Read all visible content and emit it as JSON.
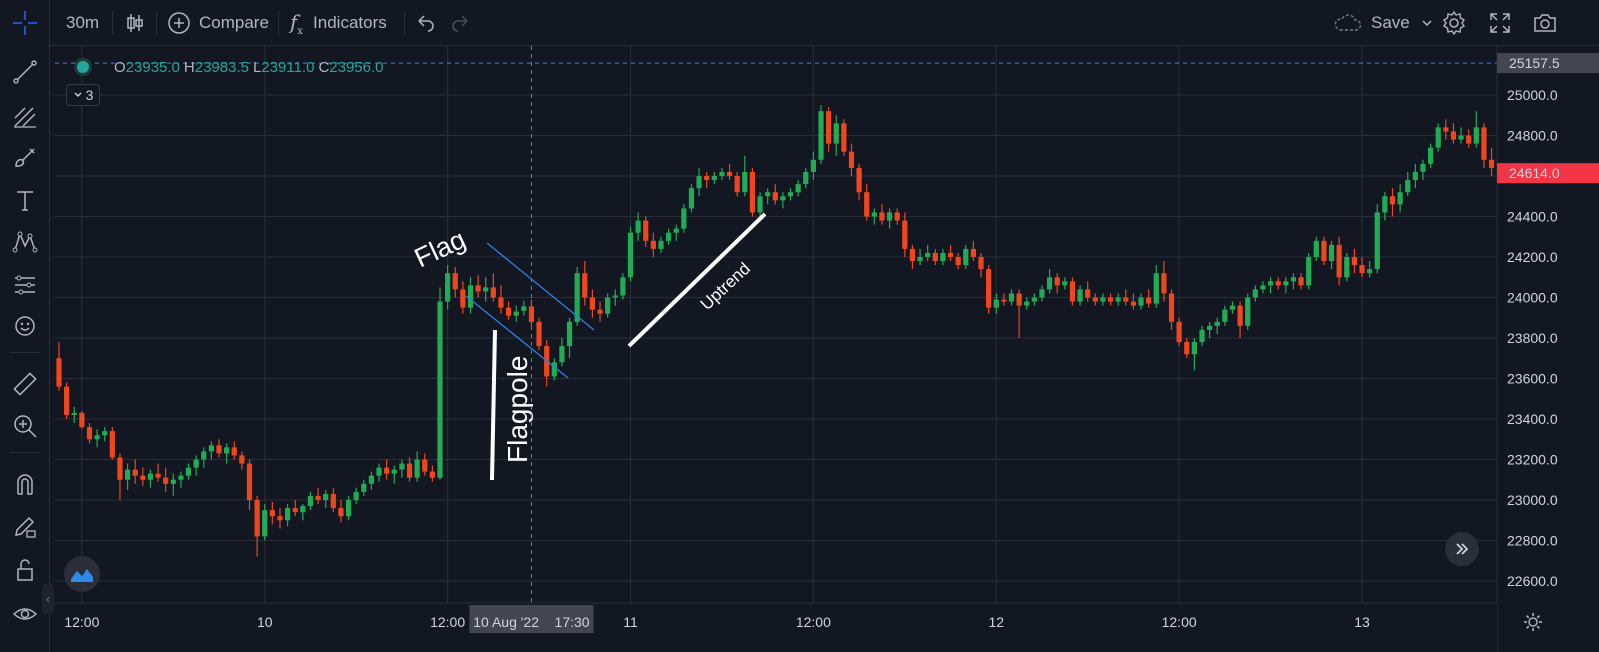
{
  "toolbar": {
    "interval": "30m",
    "compare_label": "Compare",
    "indicators_label": "Indicators",
    "save_label": "Save"
  },
  "legend": {
    "o_label": "O",
    "o_value": "23935.0",
    "h_label": "H",
    "h_value": "23983.5",
    "l_label": "L",
    "l_value": "23911.0",
    "c_label": "C",
    "c_value": "23956.0",
    "study_count": "3"
  },
  "crosshair": {
    "time_label": "10 Aug '22    17:30",
    "price_label": "25157.5",
    "price": 25157.5
  },
  "last_price": {
    "label": "24614.0",
    "value": 24614.0
  },
  "colors": {
    "up": "#26a69a",
    "down": "#ef5350",
    "up_candle": "#22ab55",
    "down_candle": "#f0461d",
    "background": "#131722",
    "grid": "#2a2e39"
  },
  "annotations": {
    "flag": "Flag",
    "flagpole": "Flagpole",
    "uptrend": "Uptrend"
  },
  "chart_data": {
    "type": "candlestick",
    "y_range": [
      22500,
      25350
    ],
    "y_ticks": [
      {
        "value": 25000,
        "label": "25000.0"
      },
      {
        "value": 24800,
        "label": "24800.0"
      },
      {
        "value": 24600,
        "label": "24600.0"
      },
      {
        "value": 24400,
        "label": "24400.0"
      },
      {
        "value": 24200,
        "label": "24200.0"
      },
      {
        "value": 24000,
        "label": "24000.0"
      },
      {
        "value": 23800,
        "label": "23800.0"
      },
      {
        "value": 23600,
        "label": "23600.0"
      },
      {
        "value": 23400,
        "label": "23400.0"
      },
      {
        "value": 23200,
        "label": "23200.0"
      },
      {
        "value": 23000,
        "label": "23000.0"
      },
      {
        "value": 22800,
        "label": "22800.0"
      },
      {
        "value": 22600,
        "label": "22600.0"
      }
    ],
    "x_ticks": [
      {
        "bar": 3,
        "label": "12:00"
      },
      {
        "bar": 27,
        "label": "10"
      },
      {
        "bar": 51,
        "label": "12:00"
      },
      {
        "bar": 75,
        "label": "11"
      },
      {
        "bar": 99,
        "label": "12:00"
      },
      {
        "bar": 123,
        "label": "12"
      },
      {
        "bar": 147,
        "label": "12:00"
      },
      {
        "bar": 171,
        "label": "13"
      }
    ],
    "crosshair_bar": 62,
    "candles": [
      [
        23700,
        23780,
        23540,
        23560
      ],
      [
        23560,
        23580,
        23400,
        23420
      ],
      [
        23420,
        23460,
        23380,
        23430
      ],
      [
        23430,
        23440,
        23350,
        23360
      ],
      [
        23360,
        23380,
        23280,
        23300
      ],
      [
        23300,
        23350,
        23260,
        23320
      ],
      [
        23320,
        23360,
        23290,
        23340
      ],
      [
        23340,
        23360,
        23200,
        23210
      ],
      [
        23210,
        23230,
        23000,
        23100
      ],
      [
        23100,
        23180,
        23050,
        23150
      ],
      [
        23150,
        23200,
        23080,
        23120
      ],
      [
        23120,
        23160,
        23070,
        23100
      ],
      [
        23100,
        23150,
        23060,
        23130
      ],
      [
        23130,
        23180,
        23090,
        23110
      ],
      [
        23110,
        23160,
        23040,
        23080
      ],
      [
        23080,
        23130,
        23020,
        23100
      ],
      [
        23100,
        23140,
        23060,
        23120
      ],
      [
        23120,
        23180,
        23100,
        23160
      ],
      [
        23160,
        23220,
        23120,
        23200
      ],
      [
        23200,
        23260,
        23160,
        23240
      ],
      [
        23240,
        23290,
        23200,
        23270
      ],
      [
        23270,
        23300,
        23210,
        23230
      ],
      [
        23230,
        23280,
        23180,
        23260
      ],
      [
        23260,
        23290,
        23200,
        23220
      ],
      [
        23220,
        23240,
        23150,
        23180
      ],
      [
        23180,
        23200,
        22950,
        23000
      ],
      [
        23000,
        23020,
        22720,
        22820
      ],
      [
        22820,
        22980,
        22800,
        22950
      ],
      [
        22950,
        22990,
        22880,
        22920
      ],
      [
        22920,
        22960,
        22860,
        22900
      ],
      [
        22900,
        22980,
        22870,
        22960
      ],
      [
        22960,
        23000,
        22920,
        22940
      ],
      [
        22940,
        22980,
        22900,
        22970
      ],
      [
        22970,
        23040,
        22950,
        23020
      ],
      [
        23020,
        23060,
        22980,
        23000
      ],
      [
        23000,
        23050,
        22960,
        23030
      ],
      [
        23030,
        23060,
        22940,
        22960
      ],
      [
        22960,
        23000,
        22890,
        22920
      ],
      [
        22920,
        23020,
        22900,
        23000
      ],
      [
        23000,
        23060,
        22980,
        23040
      ],
      [
        23040,
        23100,
        23020,
        23080
      ],
      [
        23080,
        23140,
        23050,
        23120
      ],
      [
        23120,
        23180,
        23090,
        23160
      ],
      [
        23160,
        23200,
        23100,
        23130
      ],
      [
        23130,
        23170,
        23080,
        23150
      ],
      [
        23150,
        23200,
        23110,
        23180
      ],
      [
        23180,
        23210,
        23090,
        23110
      ],
      [
        23110,
        23240,
        23090,
        23200
      ],
      [
        23200,
        23230,
        23120,
        23140
      ],
      [
        23140,
        23170,
        23090,
        23110
      ],
      [
        23110,
        24050,
        23100,
        23980
      ],
      [
        23980,
        24160,
        23940,
        24120
      ],
      [
        24120,
        24150,
        24000,
        24040
      ],
      [
        24040,
        24080,
        23920,
        23950
      ],
      [
        23950,
        24100,
        23920,
        24060
      ],
      [
        24060,
        24110,
        24000,
        24030
      ],
      [
        24030,
        24100,
        23980,
        24050
      ],
      [
        24050,
        24120,
        23980,
        24000
      ],
      [
        24000,
        24060,
        23920,
        23950
      ],
      [
        23950,
        23980,
        23890,
        23910
      ],
      [
        23910,
        23960,
        23880,
        23930
      ],
      [
        23935,
        23983.5,
        23911,
        23956
      ],
      [
        23956,
        23990,
        23860,
        23880
      ],
      [
        23880,
        23900,
        23740,
        23760
      ],
      [
        23760,
        23790,
        23560,
        23610
      ],
      [
        23610,
        23700,
        23590,
        23680
      ],
      [
        23680,
        23800,
        23660,
        23760
      ],
      [
        23760,
        23900,
        23700,
        23880
      ],
      [
        23880,
        24150,
        23860,
        24120
      ],
      [
        24120,
        24180,
        23960,
        24000
      ],
      [
        24000,
        24040,
        23900,
        23940
      ],
      [
        23940,
        23980,
        23880,
        23920
      ],
      [
        23920,
        24020,
        23900,
        24000
      ],
      [
        24000,
        24040,
        23960,
        24010
      ],
      [
        24010,
        24120,
        23990,
        24100
      ],
      [
        24100,
        24350,
        24080,
        24320
      ],
      [
        24320,
        24420,
        24280,
        24380
      ],
      [
        24380,
        24400,
        24250,
        24280
      ],
      [
        24280,
        24320,
        24200,
        24240
      ],
      [
        24240,
        24300,
        24220,
        24280
      ],
      [
        24280,
        24340,
        24260,
        24320
      ],
      [
        24320,
        24360,
        24280,
        24340
      ],
      [
        24340,
        24460,
        24320,
        24440
      ],
      [
        24440,
        24560,
        24420,
        24540
      ],
      [
        24540,
        24640,
        24500,
        24600
      ],
      [
        24600,
        24620,
        24540,
        24580
      ],
      [
        24580,
        24620,
        24560,
        24600
      ],
      [
        24600,
        24640,
        24580,
        24620
      ],
      [
        24620,
        24660,
        24580,
        24600
      ],
      [
        24600,
        24620,
        24500,
        24520
      ],
      [
        24520,
        24700,
        24500,
        24620
      ],
      [
        24620,
        24640,
        24400,
        24420
      ],
      [
        24420,
        24520,
        24400,
        24500
      ],
      [
        24500,
        24540,
        24460,
        24520
      ],
      [
        24520,
        24560,
        24460,
        24480
      ],
      [
        24480,
        24520,
        24440,
        24500
      ],
      [
        24500,
        24540,
        24480,
        24520
      ],
      [
        24520,
        24580,
        24500,
        24560
      ],
      [
        24560,
        24640,
        24540,
        24620
      ],
      [
        24620,
        24720,
        24580,
        24680
      ],
      [
        24680,
        24950,
        24660,
        24920
      ],
      [
        24920,
        24940,
        24720,
        24760
      ],
      [
        24760,
        24900,
        24700,
        24860
      ],
      [
        24860,
        24880,
        24700,
        24720
      ],
      [
        24720,
        24760,
        24600,
        24640
      ],
      [
        24640,
        24660,
        24480,
        24520
      ],
      [
        24520,
        24560,
        24380,
        24400
      ],
      [
        24400,
        24440,
        24360,
        24420
      ],
      [
        24420,
        24460,
        24360,
        24380
      ],
      [
        24380,
        24440,
        24340,
        24420
      ],
      [
        24420,
        24440,
        24360,
        24380
      ],
      [
        24380,
        24420,
        24200,
        24240
      ],
      [
        24240,
        24260,
        24140,
        24180
      ],
      [
        24180,
        24240,
        24160,
        24200
      ],
      [
        24200,
        24260,
        24180,
        24220
      ],
      [
        24220,
        24240,
        24160,
        24180
      ],
      [
        24180,
        24240,
        24160,
        24220
      ],
      [
        24220,
        24260,
        24180,
        24200
      ],
      [
        24200,
        24220,
        24140,
        24160
      ],
      [
        24160,
        24260,
        24140,
        24240
      ],
      [
        24240,
        24280,
        24180,
        24200
      ],
      [
        24200,
        24220,
        24100,
        24140
      ],
      [
        24140,
        24160,
        23920,
        23950
      ],
      [
        23950,
        24020,
        23920,
        23990
      ],
      [
        23990,
        24020,
        23960,
        23980
      ],
      [
        23980,
        24040,
        23960,
        24020
      ],
      [
        24020,
        24040,
        23800,
        23960
      ],
      [
        23960,
        24000,
        23940,
        23980
      ],
      [
        23980,
        24020,
        23960,
        24000
      ],
      [
        24000,
        24060,
        23980,
        24040
      ],
      [
        24040,
        24140,
        24020,
        24100
      ],
      [
        24100,
        24120,
        24020,
        24060
      ],
      [
        24060,
        24100,
        24040,
        24080
      ],
      [
        24080,
        24100,
        23960,
        23980
      ],
      [
        23980,
        24060,
        23960,
        24040
      ],
      [
        24040,
        24080,
        23980,
        24000
      ],
      [
        24000,
        24020,
        23960,
        23980
      ],
      [
        23980,
        24020,
        23960,
        24000
      ],
      [
        24000,
        24020,
        23960,
        23980
      ],
      [
        23980,
        24020,
        23960,
        24000
      ],
      [
        24000,
        24040,
        23960,
        23980
      ],
      [
        23980,
        24020,
        23940,
        23960
      ],
      [
        23960,
        24020,
        23940,
        24000
      ],
      [
        24000,
        24040,
        23950,
        23970
      ],
      [
        23970,
        24160,
        23950,
        24120
      ],
      [
        24120,
        24180,
        23980,
        24020
      ],
      [
        24020,
        24040,
        23840,
        23880
      ],
      [
        23880,
        23900,
        23760,
        23780
      ],
      [
        23780,
        23800,
        23700,
        23720
      ],
      [
        23720,
        23800,
        23640,
        23780
      ],
      [
        23780,
        23860,
        23760,
        23840
      ],
      [
        23840,
        23880,
        23800,
        23860
      ],
      [
        23860,
        23900,
        23820,
        23880
      ],
      [
        23880,
        23960,
        23860,
        23940
      ],
      [
        23940,
        23980,
        23920,
        23960
      ],
      [
        23960,
        23980,
        23800,
        23860
      ],
      [
        23860,
        24020,
        23840,
        24000
      ],
      [
        24000,
        24060,
        23980,
        24040
      ],
      [
        24040,
        24080,
        24020,
        24060
      ],
      [
        24060,
        24100,
        24020,
        24080
      ],
      [
        24080,
        24100,
        24040,
        24060
      ],
      [
        24060,
        24100,
        24020,
        24080
      ],
      [
        24080,
        24120,
        24040,
        24100
      ],
      [
        24100,
        24120,
        24040,
        24060
      ],
      [
        24060,
        24220,
        24040,
        24200
      ],
      [
        24200,
        24300,
        24180,
        24280
      ],
      [
        24280,
        24300,
        24160,
        24180
      ],
      [
        24180,
        24280,
        24140,
        24260
      ],
      [
        24260,
        24300,
        24060,
        24100
      ],
      [
        24100,
        24220,
        24080,
        24200
      ],
      [
        24200,
        24240,
        24120,
        24160
      ],
      [
        24160,
        24200,
        24100,
        24120
      ],
      [
        24120,
        24180,
        24100,
        24140
      ],
      [
        24140,
        24460,
        24120,
        24420
      ],
      [
        24420,
        24520,
        24380,
        24500
      ],
      [
        24500,
        24540,
        24400,
        24460
      ],
      [
        24460,
        24560,
        24420,
        24520
      ],
      [
        24520,
        24620,
        24500,
        24580
      ],
      [
        24580,
        24660,
        24540,
        24620
      ],
      [
        24620,
        24680,
        24580,
        24660
      ],
      [
        24660,
        24760,
        24640,
        24740
      ],
      [
        24740,
        24860,
        24720,
        24840
      ],
      [
        24840,
        24880,
        24780,
        24820
      ],
      [
        24820,
        24860,
        24760,
        24780
      ],
      [
        24780,
        24840,
        24760,
        24800
      ],
      [
        24800,
        24830,
        24740,
        24760
      ],
      [
        24760,
        24920,
        24740,
        24840
      ],
      [
        24840,
        24860,
        24640,
        24680
      ],
      [
        24680,
        24740,
        24600,
        24640
      ],
      [
        24640,
        24680,
        24600,
        24614
      ]
    ]
  }
}
